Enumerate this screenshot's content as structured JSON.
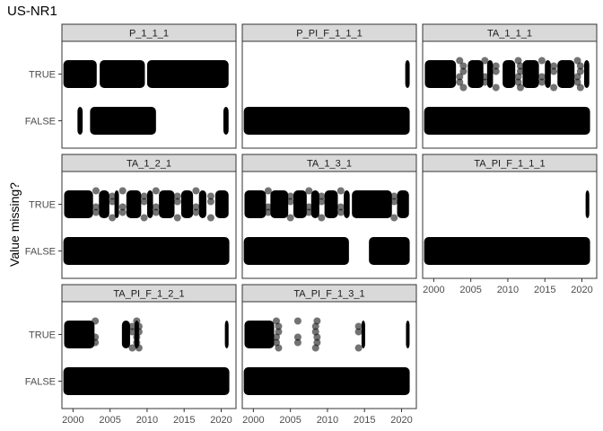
{
  "chart_data": {
    "type": "scatter",
    "title": "US-NR1",
    "ylabel": "Value missing?",
    "xlabel": "",
    "y_categories": [
      "TRUE",
      "FALSE"
    ],
    "x_ticks": [
      2000,
      2005,
      2010,
      2015,
      2020
    ],
    "xlim": [
      1998.5,
      2022.0
    ],
    "point_color": "#000000",
    "strip_color": "#d9d9d9",
    "facets": [
      {
        "name": "P_1_1_1",
        "TRUE_ranges": [
          [
            1998.7,
            2003.2
          ],
          [
            2003.6,
            2009.7
          ],
          [
            2010.0,
            2021.0
          ]
        ],
        "TRUE_points": [],
        "FALSE_ranges": [
          [
            2000.6,
            2001.3
          ],
          [
            2002.3,
            2011.2
          ],
          [
            2020.3,
            2021.0
          ]
        ],
        "FALSE_points": []
      },
      {
        "name": "P_PI_F_1_1_1",
        "TRUE_ranges": [
          [
            2020.5,
            2021.1
          ]
        ],
        "TRUE_points": [],
        "FALSE_ranges": [
          [
            1998.7,
            2021.1
          ]
        ],
        "FALSE_points": []
      },
      {
        "name": "TA_1_1_1",
        "TRUE_ranges": [
          [
            1998.8,
            2003.0
          ],
          [
            2004.6,
            2006.7
          ],
          [
            2007.2,
            2008.0
          ],
          [
            2009.3,
            2011.0
          ],
          [
            2012.0,
            2014.2
          ],
          [
            2015.0,
            2015.8
          ],
          [
            2016.7,
            2019.0
          ],
          [
            2020.3,
            2021.0
          ]
        ],
        "TRUE_points": [
          2003.5,
          2004.0,
          2006.9,
          2008.4,
          2011.4,
          2011.7,
          2014.6,
          2016.2,
          2019.4,
          2019.8
        ],
        "FALSE_ranges": [
          [
            1998.7,
            2021.1
          ]
        ],
        "FALSE_points": []
      },
      {
        "name": "TA_1_2_1",
        "TRUE_ranges": [
          [
            1998.8,
            2002.7
          ],
          [
            2003.5,
            2004.9
          ],
          [
            2005.6,
            2006.2
          ],
          [
            2007.2,
            2009.2
          ],
          [
            2010.0,
            2010.8
          ],
          [
            2011.6,
            2013.7
          ],
          [
            2014.6,
            2016.2
          ],
          [
            2017.0,
            2018.0
          ],
          [
            2019.2,
            2021.0
          ]
        ],
        "TRUE_points": [
          2003.1,
          2005.3,
          2006.7,
          2009.6,
          2011.2,
          2014.1,
          2016.6,
          2018.6
        ],
        "FALSE_ranges": [
          [
            1998.7,
            2021.1
          ]
        ],
        "FALSE_points": []
      },
      {
        "name": "TA_1_3_1",
        "TRUE_ranges": [
          [
            1998.8,
            2001.7
          ],
          [
            2002.3,
            2004.7
          ],
          [
            2005.4,
            2007.2
          ],
          [
            2007.8,
            2008.9
          ],
          [
            2009.6,
            2011.4
          ],
          [
            2012.2,
            2013.0
          ],
          [
            2013.3,
            2018.7
          ],
          [
            2019.4,
            2021.0
          ]
        ],
        "TRUE_points": [
          2002.0,
          2005.0,
          2007.5,
          2009.2,
          2011.8,
          2019.0
        ],
        "FALSE_ranges": [
          [
            1998.7,
            2012.9
          ],
          [
            2015.6,
            2021.1
          ]
        ],
        "FALSE_points": []
      },
      {
        "name": "TA_PI_F_1_1_1",
        "TRUE_ranges": [
          [
            2020.5,
            2021.0
          ]
        ],
        "TRUE_points": [],
        "FALSE_ranges": [
          [
            1998.7,
            2021.1
          ]
        ],
        "FALSE_points": []
      },
      {
        "name": "TA_PI_F_1_2_1",
        "TRUE_ranges": [
          [
            1998.8,
            2002.9
          ],
          [
            2006.6,
            2007.7
          ],
          [
            2008.3,
            2008.9
          ],
          [
            2020.5,
            2021.0
          ]
        ],
        "TRUE_points": [
          2003.0,
          2008.0,
          2008.6,
          2008.9
        ],
        "FALSE_ranges": [
          [
            1998.7,
            2021.1
          ]
        ],
        "FALSE_points": []
      },
      {
        "name": "TA_PI_F_1_3_1",
        "TRUE_ranges": [
          [
            1998.8,
            2002.8
          ],
          [
            2014.6,
            2015.0
          ],
          [
            2020.6,
            2021.0
          ]
        ],
        "TRUE_points": [
          2003.1,
          2003.4,
          2006.0,
          2008.4,
          2008.6,
          2014.2
        ],
        "FALSE_ranges": [
          [
            1998.7,
            2021.1
          ]
        ],
        "FALSE_points": []
      }
    ]
  }
}
